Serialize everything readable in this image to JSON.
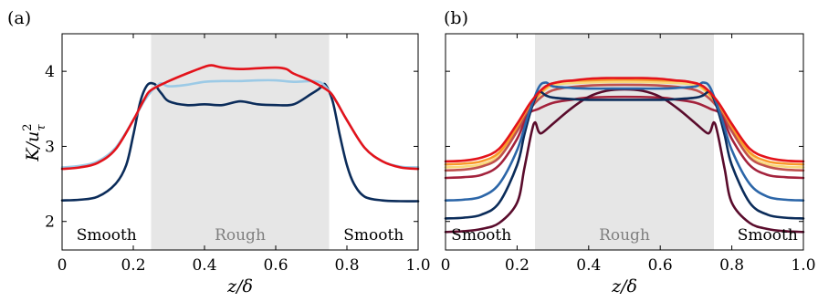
{
  "chart_data": [
    {
      "panel_label": "(a)",
      "type": "line",
      "xlabel": "z/δ",
      "ylabel": "K/u",
      "ylabel_sup": "2",
      "ylabel_sub": "τ",
      "xlim": [
        0,
        1
      ],
      "ylim": [
        1.62,
        4.5
      ],
      "xticks": [
        "0",
        "0.2",
        "0.4",
        "0.6",
        "0.8",
        "1.0"
      ],
      "xtick_values": [
        0,
        0.2,
        0.4,
        0.6,
        0.8,
        1.0
      ],
      "yticks": [
        "2",
        "3",
        "4"
      ],
      "ytick_values": [
        2,
        3,
        4
      ],
      "shaded_region": [
        0.25,
        0.75
      ],
      "region_labels": [
        {
          "text": "Smooth",
          "x": 0.125,
          "style": "dark"
        },
        {
          "text": "Rough",
          "x": 0.5,
          "style": "grey"
        },
        {
          "text": "Smooth",
          "x": 0.875,
          "style": "dark"
        }
      ],
      "series": [
        {
          "color": "#0b2c5a",
          "x": [
            0,
            0.05,
            0.1,
            0.15,
            0.18,
            0.2,
            0.22,
            0.24,
            0.26,
            0.27,
            0.28,
            0.3,
            0.35,
            0.4,
            0.45,
            0.5,
            0.55,
            0.6,
            0.65,
            0.7,
            0.72,
            0.73,
            0.74,
            0.76,
            0.78,
            0.8,
            0.82,
            0.85,
            0.9,
            0.95,
            1.0
          ],
          "y": [
            2.28,
            2.29,
            2.33,
            2.5,
            2.75,
            3.15,
            3.6,
            3.82,
            3.83,
            3.76,
            3.7,
            3.6,
            3.55,
            3.56,
            3.55,
            3.6,
            3.56,
            3.55,
            3.56,
            3.7,
            3.76,
            3.8,
            3.82,
            3.6,
            3.15,
            2.75,
            2.5,
            2.33,
            2.28,
            2.27,
            2.27
          ]
        },
        {
          "color": "#9ccae6",
          "x": [
            0,
            0.05,
            0.1,
            0.15,
            0.2,
            0.23,
            0.25,
            0.27,
            0.28,
            0.3,
            0.35,
            0.4,
            0.45,
            0.5,
            0.55,
            0.6,
            0.65,
            0.7,
            0.72,
            0.73,
            0.75,
            0.77,
            0.8,
            0.85,
            0.9,
            0.95,
            1.0
          ],
          "y": [
            2.72,
            2.74,
            2.8,
            2.98,
            3.35,
            3.6,
            3.73,
            3.82,
            3.84,
            3.8,
            3.82,
            3.86,
            3.87,
            3.87,
            3.88,
            3.88,
            3.86,
            3.87,
            3.86,
            3.84,
            3.74,
            3.6,
            3.35,
            2.98,
            2.8,
            2.73,
            2.72
          ]
        },
        {
          "color": "#e3131b",
          "x": [
            0,
            0.05,
            0.1,
            0.15,
            0.2,
            0.23,
            0.25,
            0.3,
            0.35,
            0.4,
            0.42,
            0.45,
            0.5,
            0.55,
            0.6,
            0.63,
            0.65,
            0.7,
            0.75,
            0.77,
            0.8,
            0.85,
            0.9,
            0.95,
            1.0
          ],
          "y": [
            2.7,
            2.72,
            2.78,
            2.96,
            3.35,
            3.62,
            3.75,
            3.87,
            3.97,
            4.06,
            4.08,
            4.05,
            4.03,
            4.04,
            4.05,
            4.03,
            3.97,
            3.87,
            3.73,
            3.6,
            3.35,
            2.98,
            2.8,
            2.72,
            2.7
          ]
        }
      ]
    },
    {
      "panel_label": "(b)",
      "type": "line",
      "xlabel": "z/δ",
      "xlim": [
        0,
        1
      ],
      "ylim": [
        1.62,
        4.5
      ],
      "xticks": [
        "0",
        "0.2",
        "0.4",
        "0.6",
        "0.8",
        "1.0"
      ],
      "xtick_values": [
        0,
        0.2,
        0.4,
        0.6,
        0.8,
        1.0
      ],
      "shaded_region": [
        0.25,
        0.75
      ],
      "region_labels": [
        {
          "text": "Smooth",
          "x": 0.1,
          "style": "dark"
        },
        {
          "text": "Rough",
          "x": 0.5,
          "style": "grey"
        },
        {
          "text": "Smooth",
          "x": 0.9,
          "style": "dark"
        }
      ],
      "series": [
        {
          "color": "#f8d97a",
          "x": [
            0,
            0.05,
            0.1,
            0.15,
            0.2,
            0.24,
            0.28,
            0.32,
            0.4,
            0.5,
            0.6,
            0.68,
            0.72,
            0.76,
            0.8,
            0.85,
            0.9,
            0.95,
            1.0
          ],
          "y": [
            2.72,
            2.73,
            2.76,
            2.88,
            3.22,
            3.55,
            3.76,
            3.83,
            3.85,
            3.86,
            3.85,
            3.83,
            3.76,
            3.55,
            3.22,
            2.88,
            2.76,
            2.73,
            2.72
          ]
        },
        {
          "color": "#f99a2b",
          "x": [
            0,
            0.05,
            0.1,
            0.15,
            0.2,
            0.24,
            0.28,
            0.32,
            0.4,
            0.5,
            0.6,
            0.68,
            0.72,
            0.76,
            0.8,
            0.85,
            0.9,
            0.95,
            1.0
          ],
          "y": [
            2.76,
            2.77,
            2.8,
            2.92,
            3.25,
            3.56,
            3.78,
            3.86,
            3.88,
            3.89,
            3.88,
            3.86,
            3.78,
            3.56,
            3.25,
            2.92,
            2.8,
            2.77,
            2.76
          ]
        },
        {
          "color": "#c0504d",
          "x": [
            0,
            0.05,
            0.1,
            0.15,
            0.2,
            0.24,
            0.28,
            0.32,
            0.4,
            0.5,
            0.6,
            0.68,
            0.72,
            0.76,
            0.8,
            0.85,
            0.9,
            0.95,
            1.0
          ],
          "y": [
            2.68,
            2.69,
            2.73,
            2.85,
            3.2,
            3.52,
            3.7,
            3.77,
            3.81,
            3.82,
            3.81,
            3.77,
            3.7,
            3.52,
            3.2,
            2.85,
            2.73,
            2.69,
            2.68
          ]
        },
        {
          "color": "#a3223c",
          "x": [
            0,
            0.05,
            0.1,
            0.15,
            0.2,
            0.23,
            0.26,
            0.3,
            0.35,
            0.4,
            0.5,
            0.6,
            0.65,
            0.7,
            0.74,
            0.77,
            0.8,
            0.85,
            0.9,
            0.95,
            1.0
          ],
          "y": [
            2.58,
            2.59,
            2.62,
            2.75,
            3.1,
            3.42,
            3.5,
            3.58,
            3.62,
            3.65,
            3.66,
            3.65,
            3.62,
            3.58,
            3.5,
            3.42,
            3.1,
            2.75,
            2.62,
            2.59,
            2.58
          ]
        },
        {
          "color": "#5a0c2c",
          "x": [
            0,
            0.05,
            0.1,
            0.15,
            0.2,
            0.22,
            0.24,
            0.25,
            0.26,
            0.27,
            0.3,
            0.35,
            0.4,
            0.45,
            0.5,
            0.55,
            0.6,
            0.65,
            0.7,
            0.73,
            0.74,
            0.75,
            0.76,
            0.78,
            0.8,
            0.85,
            0.9,
            0.95,
            1.0
          ],
          "y": [
            1.86,
            1.87,
            1.9,
            1.98,
            2.25,
            2.7,
            3.18,
            3.32,
            3.2,
            3.18,
            3.3,
            3.5,
            3.66,
            3.74,
            3.76,
            3.74,
            3.66,
            3.5,
            3.3,
            3.18,
            3.2,
            3.32,
            3.18,
            2.7,
            2.25,
            1.98,
            1.9,
            1.87,
            1.86
          ]
        },
        {
          "color": "#0b2c5a",
          "x": [
            0,
            0.05,
            0.1,
            0.15,
            0.2,
            0.22,
            0.24,
            0.26,
            0.28,
            0.3,
            0.35,
            0.4,
            0.5,
            0.6,
            0.65,
            0.7,
            0.72,
            0.74,
            0.76,
            0.78,
            0.8,
            0.85,
            0.9,
            0.95,
            1.0
          ],
          "y": [
            2.04,
            2.05,
            2.09,
            2.25,
            2.75,
            3.15,
            3.5,
            3.72,
            3.68,
            3.65,
            3.63,
            3.62,
            3.62,
            3.62,
            3.63,
            3.65,
            3.68,
            3.72,
            3.5,
            3.15,
            2.75,
            2.25,
            2.09,
            2.05,
            2.04
          ]
        },
        {
          "color": "#2c66a8",
          "x": [
            0,
            0.05,
            0.1,
            0.15,
            0.2,
            0.23,
            0.26,
            0.28,
            0.3,
            0.35,
            0.4,
            0.5,
            0.6,
            0.65,
            0.7,
            0.72,
            0.74,
            0.77,
            0.8,
            0.85,
            0.9,
            0.95,
            1.0
          ],
          "y": [
            2.28,
            2.29,
            2.33,
            2.5,
            2.95,
            3.4,
            3.78,
            3.85,
            3.8,
            3.78,
            3.77,
            3.77,
            3.77,
            3.78,
            3.8,
            3.85,
            3.78,
            3.4,
            2.95,
            2.5,
            2.33,
            2.29,
            2.28
          ]
        },
        {
          "color": "#e3131b",
          "x": [
            0,
            0.05,
            0.1,
            0.15,
            0.2,
            0.24,
            0.28,
            0.32,
            0.36,
            0.4,
            0.45,
            0.5,
            0.55,
            0.6,
            0.64,
            0.68,
            0.72,
            0.76,
            0.8,
            0.85,
            0.9,
            0.95,
            1.0
          ],
          "y": [
            2.8,
            2.81,
            2.85,
            2.97,
            3.3,
            3.6,
            3.8,
            3.86,
            3.88,
            3.9,
            3.91,
            3.91,
            3.91,
            3.9,
            3.88,
            3.86,
            3.8,
            3.6,
            3.3,
            2.97,
            2.85,
            2.81,
            2.8
          ]
        }
      ]
    }
  ]
}
